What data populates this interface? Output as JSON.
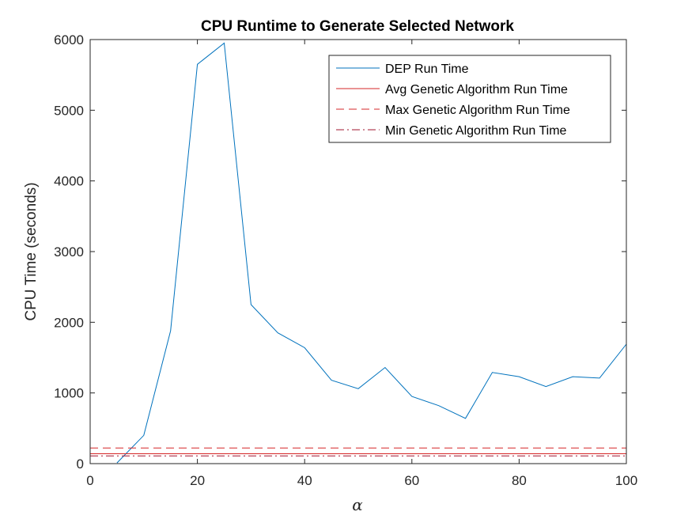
{
  "chart_data": {
    "type": "line",
    "title": "CPU Runtime to Generate Selected Network",
    "xlabel": "α",
    "ylabel": "CPU Time (seconds)",
    "xlim": [
      0,
      100
    ],
    "ylim": [
      0,
      6000
    ],
    "xticks": [
      0,
      20,
      40,
      60,
      80,
      100
    ],
    "yticks": [
      0,
      1000,
      2000,
      3000,
      4000,
      5000,
      6000
    ],
    "grid": false,
    "legend_position": "top-right",
    "series": [
      {
        "name": "DEP Run Time",
        "style": "solid",
        "color": "#0072BD",
        "x": [
          5,
          10,
          15,
          20,
          25,
          30,
          35,
          40,
          45,
          50,
          55,
          60,
          65,
          70,
          75,
          80,
          85,
          90,
          95,
          100
        ],
        "y": [
          10,
          400,
          1880,
          5650,
          5950,
          2250,
          1850,
          1640,
          1180,
          1060,
          1360,
          950,
          820,
          640,
          1290,
          1230,
          1090,
          1230,
          1210,
          1690
        ]
      },
      {
        "name": "Avg Genetic Algorithm Run Time",
        "style": "solid",
        "color": "#D62728",
        "x": [
          0,
          100
        ],
        "y": [
          140,
          140
        ]
      },
      {
        "name": "Max Genetic Algorithm Run Time",
        "style": "dashed",
        "color": "#D62728",
        "x": [
          0,
          100
        ],
        "y": [
          220,
          220
        ]
      },
      {
        "name": "Min Genetic Algorithm Run Time",
        "style": "dashdot",
        "color": "#A2142F",
        "x": [
          0,
          100
        ],
        "y": [
          110,
          110
        ]
      }
    ]
  }
}
